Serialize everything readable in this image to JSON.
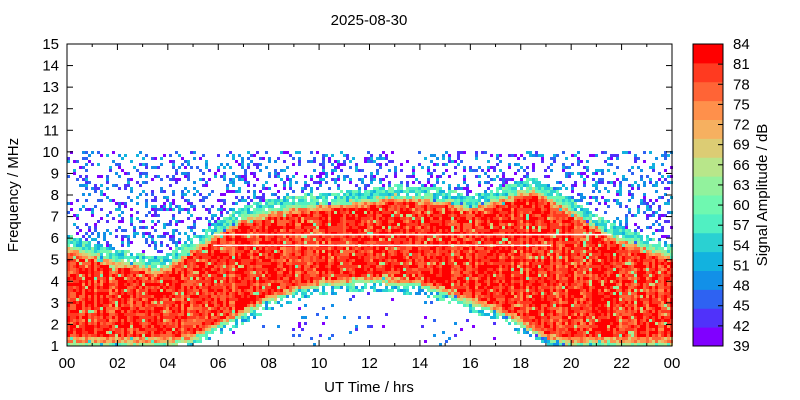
{
  "chart_data": {
    "type": "heatmap",
    "title": "2025-08-30",
    "xlabel": "UT Time / hrs",
    "ylabel": "Frequency / MHz",
    "colorbar_label": "Signal Amplitude / dB",
    "xlim": [
      0,
      24
    ],
    "ylim": [
      1,
      15
    ],
    "x_ticks": [
      "00",
      "02",
      "04",
      "06",
      "08",
      "10",
      "12",
      "14",
      "16",
      "18",
      "20",
      "22",
      "00"
    ],
    "y_ticks": [
      "1",
      "2",
      "3",
      "4",
      "5",
      "6",
      "7",
      "8",
      "9",
      "10",
      "11",
      "12",
      "13",
      "14",
      "15"
    ],
    "colorbar_range": [
      39,
      84
    ],
    "colorbar_ticks": [
      "39",
      "42",
      "45",
      "48",
      "51",
      "54",
      "57",
      "60",
      "63",
      "66",
      "69",
      "72",
      "75",
      "78",
      "81",
      "84"
    ],
    "colormap": [
      "#8000ff",
      "#5032fa",
      "#2e62f2",
      "#1290e8",
      "#12b2df",
      "#2ad1d2",
      "#50f0c2",
      "#6ff8b0",
      "#92f29d",
      "#b8e68a",
      "#dccc74",
      "#f6b060",
      "#ff904b",
      "#ff6436",
      "#ff3a20",
      "#ff0000"
    ],
    "measurement_cutoff_mhz": 10,
    "upper_edge_mhz": [
      [
        0,
        5.7
      ],
      [
        1,
        5.3
      ],
      [
        2,
        5.0
      ],
      [
        3,
        4.8
      ],
      [
        3.5,
        4.6
      ],
      [
        4,
        4.8
      ],
      [
        5,
        5.6
      ],
      [
        6,
        6.3
      ],
      [
        7,
        7.0
      ],
      [
        8,
        7.3
      ],
      [
        9,
        7.5
      ],
      [
        10,
        7.6
      ],
      [
        11,
        7.7
      ],
      [
        12,
        7.8
      ],
      [
        13,
        8.0
      ],
      [
        14,
        7.9
      ],
      [
        15,
        7.8
      ],
      [
        16,
        7.5
      ],
      [
        17,
        7.8
      ],
      [
        18,
        8.2
      ],
      [
        18.5,
        8.3
      ],
      [
        19,
        8.0
      ],
      [
        20,
        7.3
      ],
      [
        21,
        6.6
      ],
      [
        22,
        6.0
      ],
      [
        23,
        5.6
      ],
      [
        24,
        5.2
      ]
    ],
    "lower_edge_mhz": [
      [
        0,
        1
      ],
      [
        4,
        1
      ],
      [
        5,
        1.2
      ],
      [
        6,
        1.8
      ],
      [
        7,
        2.4
      ],
      [
        8,
        3.0
      ],
      [
        9,
        3.4
      ],
      [
        10,
        3.7
      ],
      [
        11,
        3.8
      ],
      [
        12,
        3.9
      ],
      [
        13,
        3.8
      ],
      [
        14,
        3.7
      ],
      [
        15,
        3.3
      ],
      [
        16,
        2.9
      ],
      [
        17,
        2.5
      ],
      [
        18,
        1.9
      ],
      [
        19,
        1.2
      ],
      [
        20,
        1
      ],
      [
        24,
        1
      ]
    ]
  }
}
